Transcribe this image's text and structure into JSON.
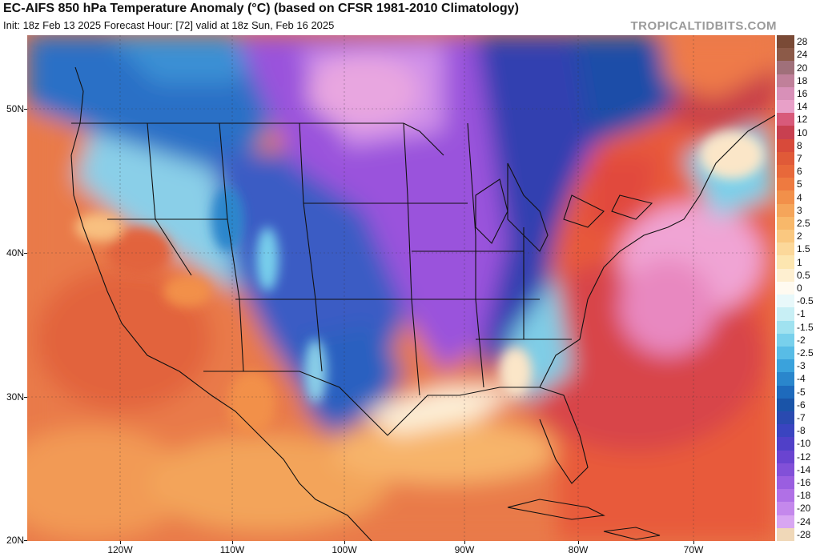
{
  "header": {
    "title": "EC-AIFS 850 hPa Temperature Anomaly (°C) (based on CFSR 1981-2010 Climatology)",
    "subtitle": "Init: 18z Feb 13 2025   Forecast Hour: [72]   valid at 18z Sun, Feb 16 2025",
    "brand": "TROPICALTIDBITS.COM"
  },
  "map": {
    "latitude_labels": [
      "50N",
      "40N",
      "30N",
      "20N"
    ],
    "longitude_labels": [
      "120W",
      "110W",
      "100W",
      "90W",
      "80W",
      "70W"
    ]
  },
  "colorbar": {
    "labels": [
      "28",
      "24",
      "20",
      "18",
      "16",
      "14",
      "12",
      "10",
      "8",
      "7",
      "6",
      "5",
      "4",
      "3",
      "2.5",
      "2",
      "1.5",
      "1",
      "0.5",
      "0",
      "-0.5",
      "-1",
      "-1.5",
      "-2",
      "-2.5",
      "-3",
      "-4",
      "-5",
      "-6",
      "-7",
      "-8",
      "-10",
      "-12",
      "-14",
      "-16",
      "-18",
      "-20",
      "-24",
      "-28"
    ],
    "colors": [
      "#7a4a36",
      "#8c5a48",
      "#a0707a",
      "#c0809a",
      "#d890b8",
      "#e8a0c8",
      "#d85a7a",
      "#c84050",
      "#d84a3a",
      "#e05a38",
      "#e8683a",
      "#ee7a40",
      "#f2904a",
      "#f5a55a",
      "#f8b86a",
      "#fac880",
      "#fcd89a",
      "#fde6b0",
      "#feefd0",
      "#fffaf0",
      "#e8f8fa",
      "#c8eff5",
      "#a0e2f0",
      "#78d0ec",
      "#58bce6",
      "#3aa2dc",
      "#2a86cc",
      "#1e6abc",
      "#1a54a8",
      "#2a4ab0",
      "#3a44c0",
      "#5040c8",
      "#6a44d0",
      "#8250d8",
      "#9a5ee0",
      "#b070e6",
      "#c488ec",
      "#d8a6f2",
      "#f0d8b8"
    ]
  }
}
